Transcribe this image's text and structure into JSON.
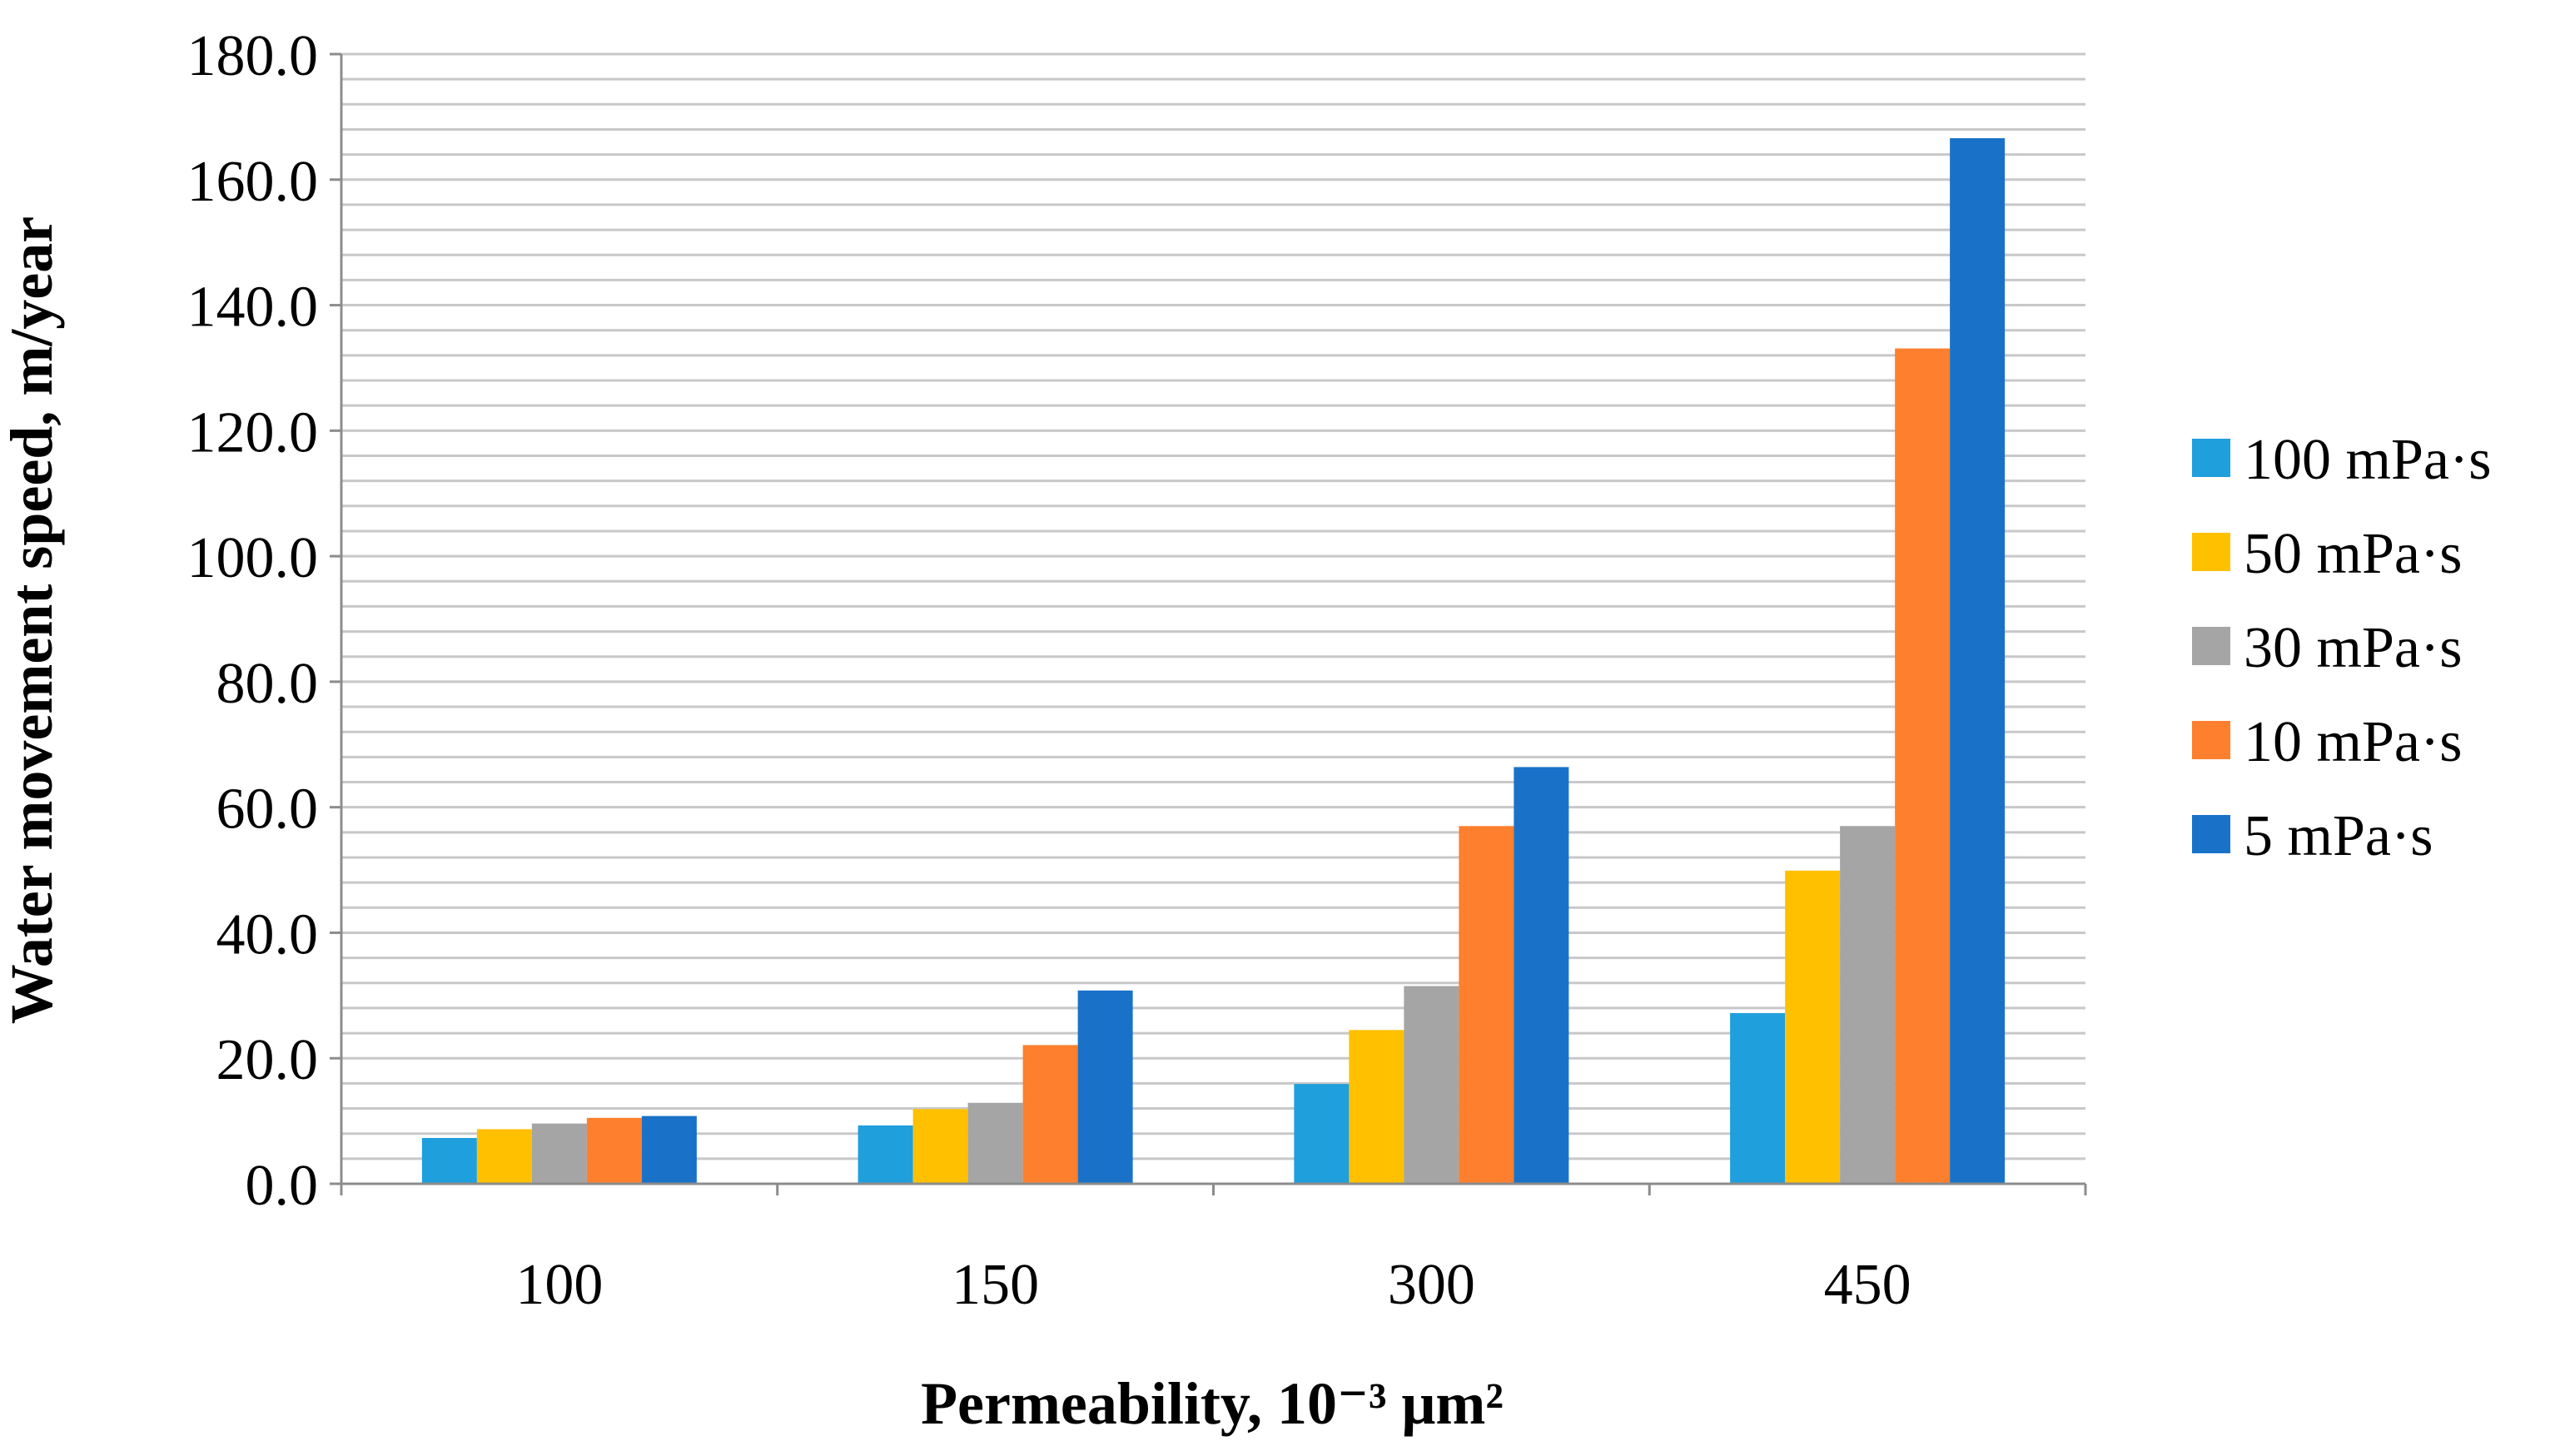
{
  "chart_data": {
    "type": "bar",
    "categories": [
      "100",
      "150",
      "300",
      "450"
    ],
    "series": [
      {
        "name": "100 mPa·s",
        "color": "#1f9fdc",
        "values": [
          7.3,
          9.3,
          15.9,
          27.2
        ]
      },
      {
        "name": "50 mPa·s",
        "color": "#ffc000",
        "values": [
          8.7,
          11.9,
          24.5,
          49.9
        ]
      },
      {
        "name": "30 mPa·s",
        "color": "#a5a5a5",
        "values": [
          9.6,
          12.9,
          31.5,
          57.0
        ]
      },
      {
        "name": "10 mPa·s",
        "color": "#fe7f2d",
        "values": [
          10.5,
          22.1,
          57.0,
          133.1
        ]
      },
      {
        "name": "5 mPa·s",
        "color": "#1a72c8",
        "values": [
          10.8,
          30.8,
          66.4,
          166.6
        ]
      }
    ],
    "xlabel": "Permeability, 10⁻³ μm²",
    "ylabel": "Water movement speed, m/year",
    "ylim": [
      0,
      180
    ],
    "major_step": 20,
    "minor_step": 4,
    "y_tick_labels": [
      "0.0",
      "20.0",
      "40.0",
      "60.0",
      "80.0",
      "100.0",
      "120.0",
      "140.0",
      "160.0",
      "180.0"
    ],
    "grid": true,
    "legend_position": "right"
  }
}
